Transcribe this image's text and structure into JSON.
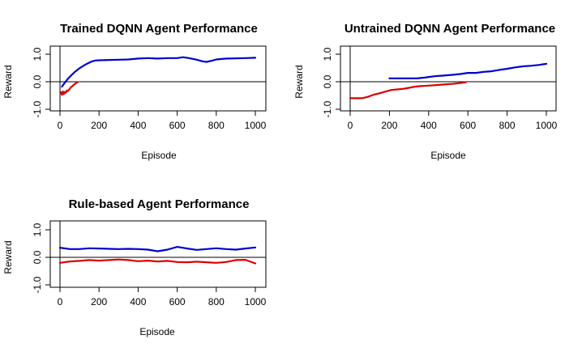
{
  "chart_data": [
    {
      "type": "line",
      "title": "Trained DQNN Agent Performance",
      "xlabel": "Episode",
      "ylabel": "Reward",
      "xlim": [
        0,
        1000
      ],
      "ylim": [
        -1,
        1
      ],
      "xticks": [
        "0",
        "200",
        "400",
        "600",
        "800",
        "1000"
      ],
      "yticks": [
        "-1.0",
        "0.0",
        "1.0"
      ],
      "hline": 0,
      "vline": 0,
      "series": [
        {
          "color": "#0000cc",
          "x": [
            10,
            20,
            40,
            60,
            80,
            100,
            120,
            140,
            160,
            180,
            200,
            250,
            300,
            350,
            400,
            450,
            500,
            550,
            600,
            630,
            660,
            700,
            730,
            750,
            780,
            800,
            850,
            900,
            950,
            1000
          ],
          "y": [
            -0.18,
            -0.08,
            0.1,
            0.25,
            0.38,
            0.49,
            0.58,
            0.66,
            0.73,
            0.77,
            0.78,
            0.79,
            0.8,
            0.81,
            0.84,
            0.86,
            0.84,
            0.86,
            0.86,
            0.89,
            0.86,
            0.8,
            0.74,
            0.72,
            0.77,
            0.81,
            0.84,
            0.85,
            0.86,
            0.87
          ]
        },
        {
          "color": "#dd0000",
          "x": [
            5,
            10,
            15,
            20,
            25,
            30,
            35,
            40,
            45,
            50,
            55,
            60,
            70,
            80,
            90
          ],
          "y": [
            -0.38,
            -0.48,
            -0.35,
            -0.45,
            -0.37,
            -0.4,
            -0.32,
            -0.34,
            -0.3,
            -0.26,
            -0.2,
            -0.18,
            -0.12,
            -0.06,
            -0.02
          ]
        }
      ]
    },
    {
      "type": "line",
      "title": "Untrained DQNN Agent Performance",
      "xlabel": "Episode",
      "ylabel": "Reward",
      "xlim": [
        0,
        1000
      ],
      "ylim": [
        -1,
        1
      ],
      "xticks": [
        "0",
        "200",
        "400",
        "600",
        "800",
        "1000"
      ],
      "yticks": [
        "-1.0",
        "0.0",
        "1.0"
      ],
      "hline": 0,
      "vline": 0,
      "series": [
        {
          "color": "#0000cc",
          "x": [
            200,
            260,
            340,
            380,
            430,
            470,
            520,
            560,
            600,
            640,
            680,
            720,
            760,
            800,
            840,
            880,
            920,
            960,
            1000
          ],
          "y": [
            0.12,
            0.12,
            0.12,
            0.15,
            0.2,
            0.22,
            0.25,
            0.28,
            0.32,
            0.32,
            0.36,
            0.38,
            0.43,
            0.47,
            0.52,
            0.56,
            0.58,
            0.61,
            0.65
          ]
        },
        {
          "color": "#dd0000",
          "x": [
            0,
            30,
            60,
            90,
            120,
            150,
            180,
            210,
            240,
            270,
            300,
            330,
            360,
            400,
            440,
            480,
            520,
            560,
            590
          ],
          "y": [
            -0.6,
            -0.6,
            -0.6,
            -0.55,
            -0.47,
            -0.42,
            -0.36,
            -0.3,
            -0.28,
            -0.26,
            -0.22,
            -0.18,
            -0.16,
            -0.14,
            -0.12,
            -0.1,
            -0.08,
            -0.05,
            -0.02
          ]
        }
      ]
    },
    {
      "type": "line",
      "title": "Rule-based Agent Performance",
      "xlabel": "Episode",
      "ylabel": "Reward",
      "xlim": [
        0,
        1000
      ],
      "ylim": [
        -1,
        1
      ],
      "xticks": [
        "0",
        "200",
        "400",
        "600",
        "800",
        "1000"
      ],
      "yticks": [
        "-1.0",
        "0.0",
        "1.0"
      ],
      "hline": 0,
      "vline": 0,
      "series": [
        {
          "color": "#0000cc",
          "x": [
            0,
            50,
            100,
            150,
            200,
            250,
            300,
            350,
            400,
            450,
            500,
            550,
            600,
            650,
            700,
            750,
            800,
            850,
            900,
            950,
            1000
          ],
          "y": [
            0.35,
            0.3,
            0.3,
            0.33,
            0.32,
            0.31,
            0.3,
            0.31,
            0.3,
            0.28,
            0.22,
            0.28,
            0.38,
            0.32,
            0.27,
            0.3,
            0.33,
            0.3,
            0.28,
            0.32,
            0.36
          ]
        },
        {
          "color": "#dd0000",
          "x": [
            0,
            50,
            100,
            150,
            200,
            250,
            300,
            350,
            400,
            450,
            500,
            550,
            600,
            650,
            700,
            750,
            800,
            850,
            900,
            950,
            1000
          ],
          "y": [
            -0.2,
            -0.15,
            -0.13,
            -0.1,
            -0.12,
            -0.1,
            -0.08,
            -0.1,
            -0.14,
            -0.12,
            -0.15,
            -0.13,
            -0.17,
            -0.18,
            -0.16,
            -0.18,
            -0.2,
            -0.17,
            -0.1,
            -0.09,
            -0.22
          ]
        }
      ]
    }
  ]
}
